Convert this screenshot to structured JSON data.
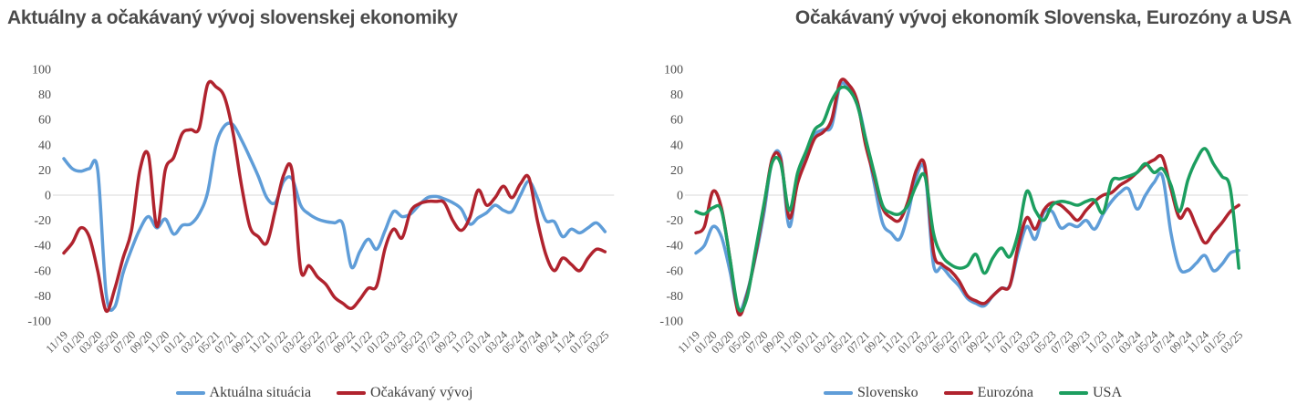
{
  "page": {
    "background": "#ffffff",
    "zero_line_color": "#d9d9d9"
  },
  "chart_data": [
    {
      "type": "line",
      "title": "Aktuálny a očakávaný vývoj slovenskej ekonomiky",
      "xlabel": "",
      "ylabel": "",
      "ylim": [
        -100,
        100
      ],
      "y_ticks": [
        100,
        80,
        60,
        40,
        20,
        0,
        -20,
        -40,
        -60,
        -80,
        -100
      ],
      "grid": "zero-line-only",
      "legend_position": "bottom",
      "categories": [
        "11/19",
        "12/19",
        "01/20",
        "02/20",
        "03/20",
        "04/20",
        "05/20",
        "06/20",
        "07/20",
        "08/20",
        "09/20",
        "10/20",
        "11/20",
        "12/20",
        "01/21",
        "02/21",
        "03/21",
        "04/21",
        "05/21",
        "06/21",
        "07/21",
        "08/21",
        "09/21",
        "10/21",
        "11/21",
        "12/21",
        "01/22",
        "02/22",
        "03/22",
        "04/22",
        "05/22",
        "06/22",
        "07/22",
        "08/22",
        "09/22",
        "10/22",
        "11/22",
        "12/22",
        "01/23",
        "02/23",
        "03/23",
        "04/23",
        "05/23",
        "06/23",
        "07/23",
        "08/23",
        "09/23",
        "10/23",
        "11/23",
        "12/23",
        "01/24",
        "02/24",
        "03/24",
        "04/24",
        "05/24",
        "06/24",
        "07/24",
        "08/24",
        "09/24",
        "10/24",
        "11/24",
        "12/24",
        "01/25",
        "02/25",
        "03/25"
      ],
      "x_ticks_shown": [
        "11/19",
        "01/20",
        "03/20",
        "05/20",
        "07/20",
        "09/20",
        "11/20",
        "01/21",
        "03/21",
        "05/21",
        "07/21",
        "09/21",
        "11/21",
        "01/22",
        "03/22",
        "05/22",
        "07/22",
        "09/22",
        "11/22",
        "01/23",
        "03/23",
        "05/23",
        "07/23",
        "09/23",
        "11/23",
        "01/24",
        "03/24",
        "05/24",
        "07/24",
        "09/24",
        "11/24",
        "01/25",
        "03/25"
      ],
      "series": [
        {
          "name": "Aktuálna situácia",
          "color": "#5f9dd8",
          "values": [
            29,
            21,
            19,
            21,
            20,
            -78,
            -89,
            -62,
            -43,
            -27,
            -17,
            -26,
            -19,
            -31,
            -24,
            -23,
            -15,
            2,
            40,
            55,
            56,
            44,
            30,
            15,
            -2,
            -6,
            11,
            13,
            -8,
            -15,
            -19,
            -21,
            -22,
            -23,
            -57,
            -45,
            -35,
            -43,
            -28,
            -13,
            -17,
            -15,
            -8,
            -2,
            -1,
            -3,
            -6,
            -11,
            -23,
            -18,
            -14,
            -8,
            -12,
            -13,
            0,
            11,
            -2,
            -20,
            -21,
            -33,
            -27,
            -30,
            -26,
            -22,
            -29
          ]
        },
        {
          "name": "Očakávaný vývoj",
          "color": "#b0232e",
          "values": [
            -46,
            -38,
            -26,
            -33,
            -60,
            -92,
            -75,
            -50,
            -28,
            20,
            32,
            -25,
            20,
            30,
            49,
            52,
            53,
            88,
            86,
            78,
            50,
            8,
            -25,
            -33,
            -38,
            -12,
            16,
            19,
            -59,
            -56,
            -65,
            -71,
            -81,
            -86,
            -90,
            -83,
            -74,
            -72,
            -42,
            -27,
            -34,
            -13,
            -7,
            -5,
            -5,
            -6,
            -20,
            -28,
            -18,
            4,
            -8,
            -2,
            7,
            -2,
            9,
            14,
            -20,
            -47,
            -60,
            -50,
            -55,
            -60,
            -50,
            -43,
            -45
          ]
        }
      ]
    },
    {
      "type": "line",
      "title": "Očakávaný vývoj ekonomík Slovenska, Eurozóny a USA",
      "xlabel": "",
      "ylabel": "",
      "ylim": [
        -100,
        100
      ],
      "y_ticks": [
        100,
        80,
        60,
        40,
        20,
        0,
        -20,
        -40,
        -60,
        -80,
        -100
      ],
      "grid": "zero-line-only",
      "legend_position": "bottom",
      "categories": [
        "11/19",
        "12/19",
        "01/20",
        "02/20",
        "03/20",
        "04/20",
        "05/20",
        "06/20",
        "07/20",
        "08/20",
        "09/20",
        "10/20",
        "11/20",
        "12/20",
        "01/21",
        "02/21",
        "03/21",
        "04/21",
        "05/21",
        "06/21",
        "07/21",
        "08/21",
        "09/21",
        "10/21",
        "11/21",
        "12/21",
        "01/22",
        "02/22",
        "03/22",
        "04/22",
        "05/22",
        "06/22",
        "07/22",
        "08/22",
        "09/22",
        "10/22",
        "11/22",
        "12/22",
        "01/23",
        "02/23",
        "03/23",
        "04/23",
        "05/23",
        "06/23",
        "07/23",
        "08/23",
        "09/23",
        "10/23",
        "11/23",
        "12/23",
        "01/24",
        "02/24",
        "03/24",
        "04/24",
        "05/24",
        "06/24",
        "07/24",
        "08/24",
        "09/24",
        "10/24",
        "11/24",
        "12/24",
        "01/25",
        "02/25",
        "03/25"
      ],
      "x_ticks_shown": [
        "11/19",
        "01/20",
        "03/20",
        "05/20",
        "07/20",
        "09/20",
        "11/20",
        "01/21",
        "03/21",
        "05/21",
        "07/21",
        "09/21",
        "11/21",
        "01/22",
        "03/22",
        "05/22",
        "07/22",
        "09/22",
        "11/22",
        "01/23",
        "03/23",
        "05/23",
        "07/23",
        "09/23",
        "11/23",
        "01/24",
        "03/24",
        "05/24",
        "07/24",
        "09/24",
        "11/24",
        "01/25",
        "03/25"
      ],
      "series": [
        {
          "name": "Slovensko",
          "color": "#5f9dd8",
          "values": [
            -46,
            -40,
            -25,
            -33,
            -60,
            -92,
            -78,
            -50,
            -15,
            28,
            30,
            -25,
            15,
            32,
            48,
            52,
            55,
            87,
            85,
            75,
            45,
            10,
            -22,
            -30,
            -35,
            -15,
            15,
            19,
            -55,
            -57,
            -65,
            -72,
            -82,
            -86,
            -88,
            -80,
            -74,
            -72,
            -45,
            -25,
            -35,
            -14,
            -13,
            -26,
            -23,
            -25,
            -20,
            -27,
            -15,
            -5,
            2,
            5,
            -11,
            0,
            10,
            15,
            -30,
            -58,
            -60,
            -54,
            -48,
            -60,
            -55,
            -46,
            -44
          ]
        },
        {
          "name": "Eurozóna",
          "color": "#b0232e",
          "values": [
            -30,
            -25,
            3,
            -10,
            -50,
            -94,
            -80,
            -48,
            -10,
            29,
            28,
            -18,
            10,
            28,
            45,
            50,
            60,
            90,
            88,
            75,
            40,
            15,
            -10,
            -18,
            -20,
            -5,
            20,
            23,
            -45,
            -55,
            -60,
            -68,
            -80,
            -84,
            -86,
            -80,
            -74,
            -72,
            -40,
            -18,
            -27,
            -12,
            -6,
            -8,
            -14,
            -20,
            -12,
            -5,
            0,
            2,
            8,
            12,
            18,
            24,
            28,
            30,
            5,
            -18,
            -11,
            -25,
            -38,
            -30,
            -22,
            -13,
            -8
          ]
        },
        {
          "name": "USA",
          "color": "#1c9e5f",
          "values": [
            -13,
            -15,
            -10,
            -12,
            -50,
            -90,
            -82,
            -45,
            -8,
            26,
            25,
            -12,
            18,
            35,
            52,
            58,
            75,
            85,
            84,
            72,
            45,
            18,
            -8,
            -14,
            -15,
            -8,
            8,
            15,
            -30,
            -48,
            -55,
            -58,
            -56,
            -47,
            -62,
            -50,
            -42,
            -49,
            -30,
            3,
            -12,
            -20,
            -8,
            -5,
            -6,
            -8,
            -5,
            -4,
            -14,
            11,
            13,
            15,
            18,
            25,
            18,
            21,
            8,
            -13,
            12,
            28,
            37,
            25,
            15,
            5,
            -58
          ]
        }
      ]
    }
  ]
}
